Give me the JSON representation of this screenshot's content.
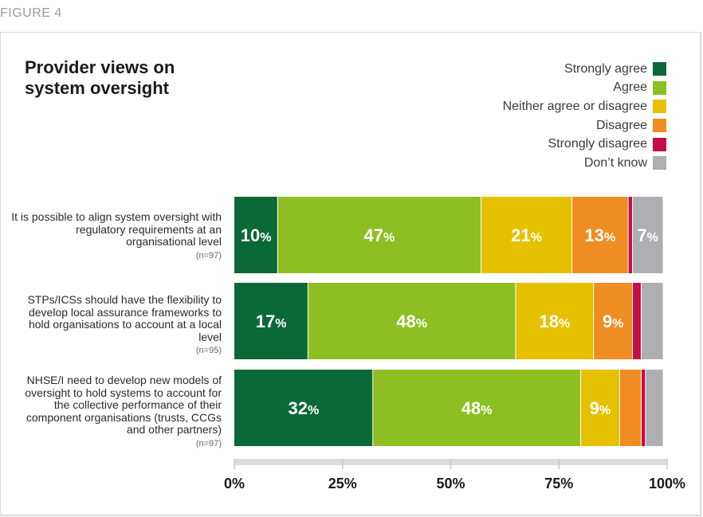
{
  "figure_label": "FIGURE 4",
  "chart_data": {
    "type": "bar",
    "orientation": "horizontal",
    "stacked": true,
    "title": "Provider views on\nsystem oversight",
    "legend_position": "top-right",
    "categories": [
      {
        "label": "It is possible to align system oversight with regulatory requirements at an organisational level",
        "n": "(n=97)"
      },
      {
        "label": "STPs/ICSs should have the flexibility to develop local assurance frameworks to hold organisations to account at a local level",
        "n": "(n=95)"
      },
      {
        "label": "NHSE/I need to develop new models of oversight to hold systems to account for the collective performance of their component organisations (trusts, CCGs and other partners)",
        "n": "(n=97)"
      }
    ],
    "series": [
      {
        "name": "Strongly agree",
        "color": "#0b6838",
        "values": [
          10,
          17,
          32
        ],
        "labels": [
          "10%",
          "17%",
          "32%"
        ]
      },
      {
        "name": "Agree",
        "color": "#8ebf22",
        "values": [
          47,
          48,
          48
        ],
        "labels": [
          "47%",
          "48%",
          "48%"
        ]
      },
      {
        "name": "Neither agree or disagree",
        "color": "#e6c100",
        "values": [
          21,
          18,
          9
        ],
        "labels": [
          "21%",
          "18%",
          "9%"
        ]
      },
      {
        "name": "Disagree",
        "color": "#ef8d23",
        "values": [
          13,
          9,
          5
        ],
        "labels": [
          "13%",
          "9%",
          ""
        ]
      },
      {
        "name": "Strongly disagree",
        "color": "#c70d47",
        "values": [
          1,
          2,
          1
        ],
        "labels": [
          "",
          "",
          ""
        ]
      },
      {
        "name": "Don’t know",
        "color": "#adafb2",
        "values": [
          7,
          5,
          4
        ],
        "labels": [
          "7%",
          "",
          ""
        ]
      }
    ],
    "x_ticks": [
      "0%",
      "25%",
      "50%",
      "75%",
      "100%"
    ],
    "xlim": [
      0,
      100
    ],
    "grid": false
  }
}
